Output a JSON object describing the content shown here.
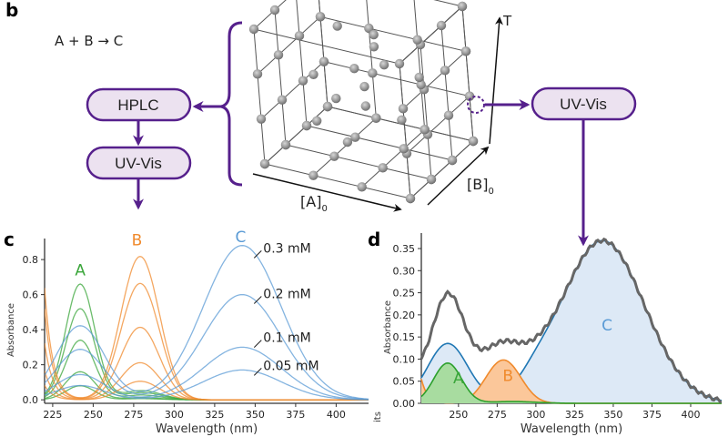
{
  "panels": {
    "b": "b",
    "c": "c",
    "d": "d"
  },
  "reaction": "A + B → C",
  "flow": {
    "hplc_label": "HPLC",
    "uvvis_left_label": "UV-Vis",
    "uvvis_right_label": "UV-Vis"
  },
  "cube": {
    "axis_a": "[A]",
    "axis_a_sub": "0",
    "axis_b": "[B]",
    "axis_b_sub": "0",
    "axis_t": "T"
  },
  "colors": {
    "A": "#3aa63a",
    "B": "#f08a2c",
    "C": "#5b9bd5",
    "fit_C": "#1f77b4",
    "measured": "#666666",
    "purple": "#56208c"
  },
  "chart_data": [
    {
      "id": "c",
      "type": "line",
      "title": "",
      "xlabel": "Wavelength (nm)",
      "ylabel": "Absorbance",
      "xlim": [
        220,
        420
      ],
      "ylim": [
        -0.02,
        0.92
      ],
      "xticks": [
        225,
        250,
        275,
        300,
        325,
        350,
        375,
        400
      ],
      "yticks": [
        0.0,
        0.2,
        0.4,
        0.6,
        0.8
      ],
      "ytick_labels": [
        "0.0",
        "0.2",
        "0.4",
        "0.6",
        "0.8"
      ],
      "grid": false,
      "annotations": [
        {
          "text": "A",
          "color": "#3aa63a",
          "x": 242,
          "y": 0.71
        },
        {
          "text": "B",
          "color": "#f08a2c",
          "x": 277,
          "y": 0.88
        },
        {
          "text": "C",
          "color": "#5b9bd5",
          "x": 341,
          "y": 0.9
        },
        {
          "text": "0.3 mM",
          "x": 355,
          "y": 0.84
        },
        {
          "text": "0.2 mM",
          "x": 355,
          "y": 0.58
        },
        {
          "text": "0.1 mM",
          "x": 355,
          "y": 0.33
        },
        {
          "text": "0.05 mM",
          "x": 355,
          "y": 0.17
        }
      ],
      "series_groups": [
        {
          "name": "A",
          "color": "#3aa63a",
          "peak": 242,
          "width": 9,
          "peaks_abs": [
            0.66,
            0.52,
            0.34,
            0.16,
            0.08
          ]
        },
        {
          "name": "B",
          "color": "#f08a2c",
          "peak": 279,
          "width": 13,
          "peaks_abs": [
            0.85,
            0.69,
            0.43,
            0.22,
            0.11
          ]
        },
        {
          "name": "C",
          "color": "#5b9bd5",
          "peak": 342,
          "width": 24,
          "peaks_abs": [
            0.88,
            0.6,
            0.3,
            0.17
          ]
        }
      ]
    },
    {
      "id": "d",
      "type": "area",
      "title": "",
      "xlabel": "Wavelength (nm)",
      "ylabel": "Absorbance",
      "xlim": [
        226,
        420
      ],
      "ylim": [
        0.0,
        0.385
      ],
      "xticks": [
        250,
        275,
        300,
        325,
        350,
        375,
        400
      ],
      "yticks": [
        0.0,
        0.05,
        0.1,
        0.15,
        0.2,
        0.25,
        0.3,
        0.35
      ],
      "ytick_labels": [
        "0.00",
        "0.05",
        "0.10",
        "0.15",
        "0.20",
        "0.25",
        "0.30",
        "0.35"
      ],
      "grid": false,
      "annotations": [
        {
          "text": "A",
          "color": "#3aa63a",
          "x": 250,
          "y": 0.045
        },
        {
          "text": "B",
          "color": "#f08a2c",
          "x": 282,
          "y": 0.05
        },
        {
          "text": "C",
          "color": "#5b9bd5",
          "x": 346,
          "y": 0.165
        }
      ],
      "series": [
        {
          "name": "A component",
          "color": "#2ca02c",
          "fill": "#a8dca0",
          "peak": 243,
          "width": 9,
          "amp": 0.091
        },
        {
          "name": "B component",
          "color": "#f08a2c",
          "fill": "#fbc79a",
          "peak": 279,
          "width": 12,
          "amp": 0.107
        },
        {
          "name": "C fit",
          "color": "#1f77b4",
          "fill": "#dde9f6",
          "peak": 343,
          "width": 27,
          "amp": 0.368
        },
        {
          "name": "Measured",
          "color": "#666666"
        }
      ]
    }
  ]
}
